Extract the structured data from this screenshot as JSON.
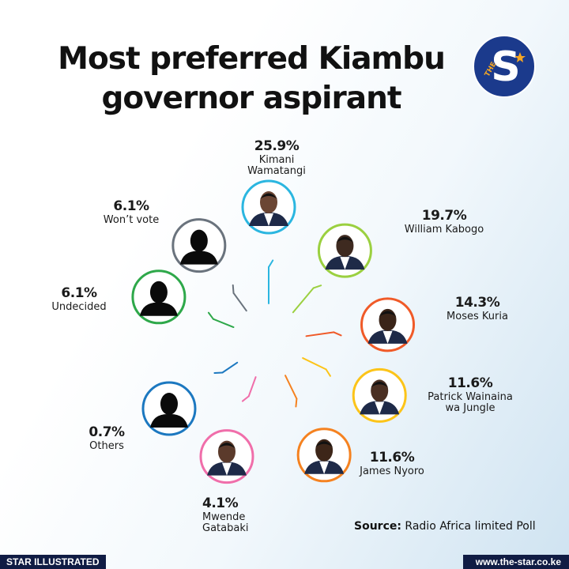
{
  "title_line1": "Most preferred  Kiambu",
  "title_line2": "governor aspirant",
  "logo": {
    "text": "S",
    "small_text": "THE",
    "bg": "#1b3a8c",
    "accent": "#f5a623"
  },
  "chart_data": {
    "type": "radial",
    "title": "Most preferred  Kiambu governor aspirant",
    "unit": "%",
    "items": [
      {
        "name": "Kimani Wamatangi",
        "value": 25.9,
        "label": "25.9%",
        "color": "#2bb6e0",
        "photo": "person-photo",
        "skin": "#6b4634"
      },
      {
        "name": "William Kabogo",
        "value": 19.7,
        "label": "19.7%",
        "color": "#9bd040",
        "photo": "person-photo",
        "skin": "#3e2a20"
      },
      {
        "name": "Moses Kuria",
        "value": 14.3,
        "label": "14.3%",
        "color": "#f05a28",
        "photo": "person-photo",
        "skin": "#3a2418"
      },
      {
        "name": "Patrick Wainaina\nwa Jungle",
        "value": 11.6,
        "label": "11.6%",
        "color": "#fcc419",
        "photo": "person-photo",
        "skin": "#4a2f22"
      },
      {
        "name": "James Nyoro",
        "value": 11.6,
        "label": "11.6%",
        "color": "#f58220",
        "photo": "person-photo",
        "skin": "#3d2619"
      },
      {
        "name": "Mwende\nGatabaki",
        "value": 4.1,
        "label": "4.1%",
        "color": "#f06eaa",
        "photo": "person-photo",
        "skin": "#5b3a2b"
      },
      {
        "name": "Others",
        "value": 0.7,
        "label": "0.7%",
        "color": "#1c78c0",
        "photo": "silhouette",
        "skin": "#0a0a0a"
      },
      {
        "name": "Undecided",
        "value": 6.1,
        "label": "6.1%",
        "color": "#2ea84a",
        "photo": "silhouette",
        "skin": "#0a0a0a"
      },
      {
        "name": "Won’t vote",
        "value": 6.1,
        "label": "6.1%",
        "color": "#6a737d",
        "photo": "silhouette",
        "skin": "#0a0a0a"
      }
    ]
  },
  "source_label": "Source:",
  "source_text": " Radio Africa limited Poll",
  "footer_left": "STAR ILLUSTRATED",
  "footer_right": "www.the-star.co.ke"
}
